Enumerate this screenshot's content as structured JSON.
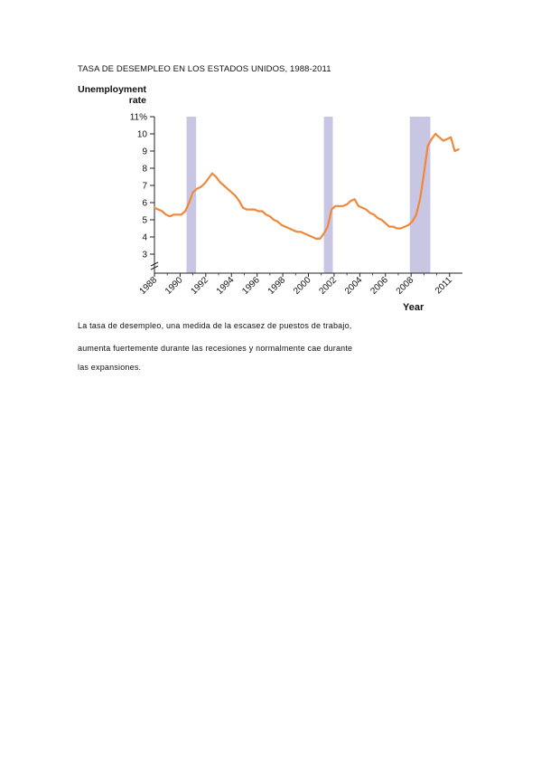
{
  "caption_title": "TASA DE DESEMPLEO EN LOS ESTADOS UNIDOS, 1988-2011",
  "caption_lines": [
    "La tasa de desempleo, una medida de la escasez de puestos de trabajo,",
    "aumenta fuertemente durante las recesiones y normalmente cae durante",
    "las expansiones."
  ],
  "chart_data": {
    "type": "line",
    "ylabel": "Unemployment rate",
    "xlabel": "Year",
    "ylim": [
      2.5,
      11
    ],
    "xlim": [
      1988,
      2012
    ],
    "yticks": [
      "11%",
      "10",
      "9",
      "8",
      "7",
      "6",
      "5",
      "4",
      "3"
    ],
    "ytick_values": [
      11,
      10,
      9,
      8,
      7,
      6,
      5,
      4,
      3
    ],
    "xticks": [
      "1988",
      "1990",
      "1992",
      "1994",
      "1996",
      "1998",
      "2000",
      "2002",
      "2004",
      "2006",
      "2008",
      "2011"
    ],
    "xtick_values": [
      1988,
      1990,
      1992,
      1994,
      1996,
      1998,
      2000,
      2002,
      2004,
      2006,
      2008,
      2011
    ],
    "axis_break": true,
    "colors": {
      "line": "#f0883a",
      "recession": "#c9c6e4",
      "axis": "#222222"
    },
    "recessions": [
      {
        "start": 1990.5,
        "end": 1991.25
      },
      {
        "start": 2001.2,
        "end": 2001.9
      },
      {
        "start": 2007.9,
        "end": 2009.5
      }
    ],
    "series": [
      {
        "x": [
          1988.0,
          1988.3,
          1988.6,
          1988.9,
          1989.2,
          1989.5,
          1989.8,
          1990.1,
          1990.4,
          1990.7,
          1991.0,
          1991.3,
          1991.6,
          1991.9,
          1992.2,
          1992.5,
          1992.8,
          1993.1,
          1993.4,
          1993.7,
          1994.0,
          1994.3,
          1994.6,
          1994.9,
          1995.2,
          1995.5,
          1995.8,
          1996.1,
          1996.4,
          1996.7,
          1997.0,
          1997.3,
          1997.6,
          1997.9,
          1998.2,
          1998.5,
          1998.8,
          1999.1,
          1999.4,
          1999.7,
          2000.0,
          2000.3,
          2000.6,
          2000.9,
          2001.2,
          2001.5,
          2001.8,
          2002.1,
          2002.4,
          2002.7,
          2003.0,
          2003.3,
          2003.6,
          2003.9,
          2004.2,
          2004.5,
          2004.8,
          2005.1,
          2005.4,
          2005.7,
          2006.0,
          2006.3,
          2006.6,
          2006.9,
          2007.2,
          2007.5,
          2007.8,
          2008.1,
          2008.4,
          2008.7,
          2009.0,
          2009.3,
          2009.6,
          2009.9,
          2010.2,
          2010.5,
          2010.8,
          2011.1,
          2011.4,
          2011.7
        ],
        "y": [
          5.7,
          5.6,
          5.5,
          5.3,
          5.2,
          5.3,
          5.3,
          5.3,
          5.5,
          6.0,
          6.6,
          6.8,
          6.9,
          7.1,
          7.4,
          7.7,
          7.5,
          7.2,
          7.0,
          6.8,
          6.6,
          6.4,
          6.1,
          5.7,
          5.6,
          5.6,
          5.6,
          5.5,
          5.5,
          5.3,
          5.2,
          5.0,
          4.9,
          4.7,
          4.6,
          4.5,
          4.4,
          4.3,
          4.3,
          4.2,
          4.1,
          4.0,
          3.9,
          3.9,
          4.2,
          4.6,
          5.6,
          5.8,
          5.8,
          5.8,
          5.9,
          6.1,
          6.2,
          5.8,
          5.7,
          5.6,
          5.4,
          5.3,
          5.1,
          5.0,
          4.8,
          4.6,
          4.6,
          4.5,
          4.5,
          4.6,
          4.7,
          4.9,
          5.3,
          6.2,
          7.7,
          9.3,
          9.7,
          10.0,
          9.8,
          9.6,
          9.7,
          9.8,
          9.0,
          9.1
        ]
      }
    ]
  }
}
